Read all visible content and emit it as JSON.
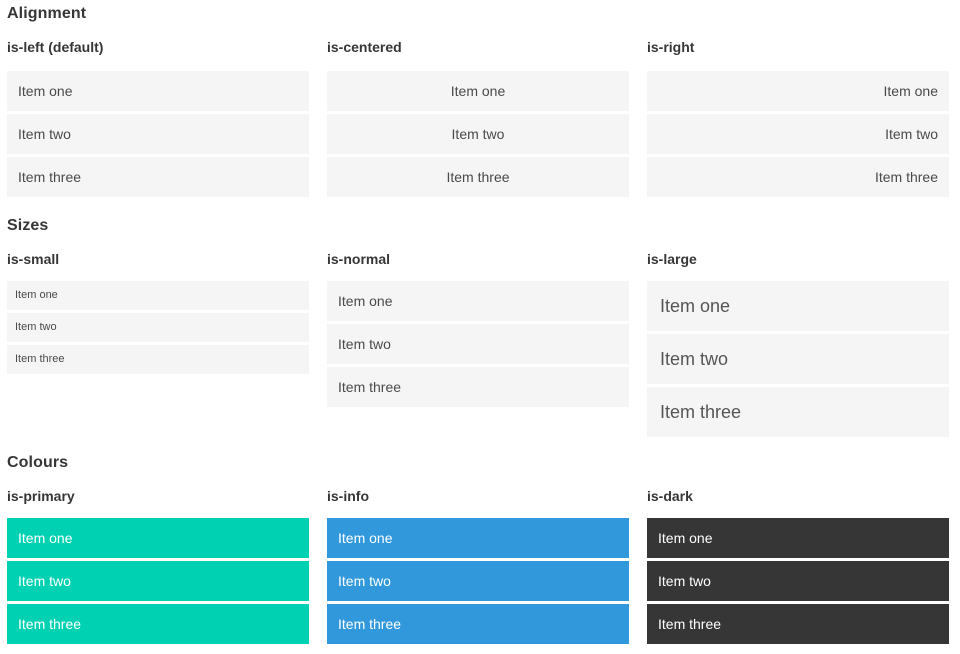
{
  "sections": [
    {
      "title": "Alignment",
      "columns": [
        {
          "label": "is-left (default)",
          "items": [
            "Item one",
            "Item two",
            "Item three"
          ]
        },
        {
          "label": "is-centered",
          "items": [
            "Item one",
            "Item two",
            "Item three"
          ]
        },
        {
          "label": "is-right",
          "items": [
            "Item one",
            "Item two",
            "Item three"
          ]
        }
      ]
    },
    {
      "title": "Sizes",
      "columns": [
        {
          "label": "is-small",
          "items": [
            "Item one",
            "Item two",
            "Item three"
          ]
        },
        {
          "label": "is-normal",
          "items": [
            "Item one",
            "Item two",
            "Item three"
          ]
        },
        {
          "label": "is-large",
          "items": [
            "Item one",
            "Item two",
            "Item three"
          ]
        }
      ]
    },
    {
      "title": "Colours",
      "columns": [
        {
          "label": "is-primary",
          "items": [
            "Item one",
            "Item two",
            "Item three"
          ]
        },
        {
          "label": "is-info",
          "items": [
            "Item one",
            "Item two",
            "Item three"
          ]
        },
        {
          "label": "is-dark",
          "items": [
            "Item one",
            "Item two",
            "Item three"
          ]
        }
      ]
    }
  ],
  "colors": {
    "primary": "#00d1b2",
    "info": "#3298dc",
    "dark": "#363636",
    "item_background": "#f5f5f5",
    "item_text": "#4a4a4a",
    "heading_text": "#363636"
  }
}
